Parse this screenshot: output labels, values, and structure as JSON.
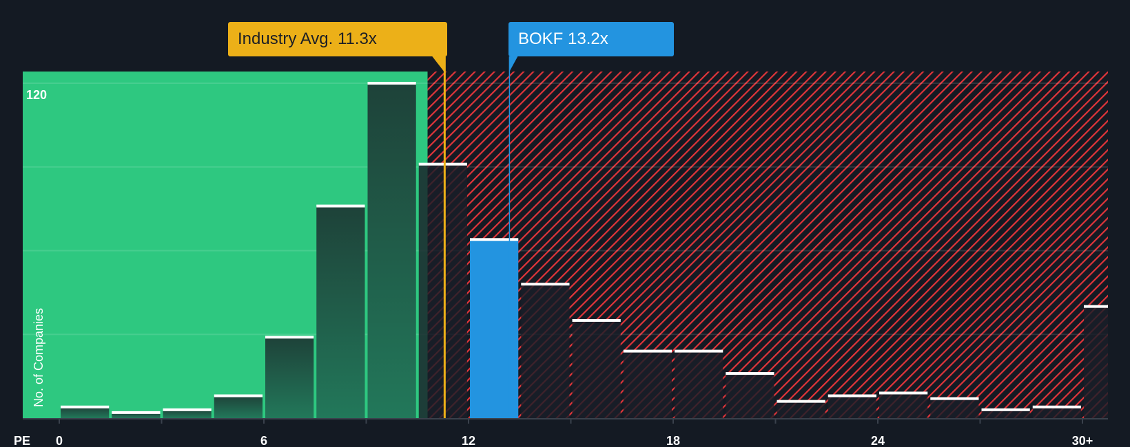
{
  "chart_data": {
    "type": "bar",
    "title": "",
    "xlabel": "PE",
    "ylabel": "No. of Companies",
    "x_ticks": [
      "0",
      "6",
      "12",
      "18",
      "24",
      "30+"
    ],
    "y_tick_label": "120",
    "ylim": [
      0,
      124
    ],
    "xlim": [
      0,
      31.5
    ],
    "bin_width": 1.5,
    "bins_start": [
      0,
      1.5,
      3,
      4.5,
      6,
      7.5,
      9,
      10.5,
      12,
      13.5,
      15,
      16.5,
      18,
      19.5,
      21,
      22.5,
      24,
      25.5,
      27,
      28.5,
      30
    ],
    "values": [
      4,
      2,
      3,
      8,
      29,
      76,
      120,
      91,
      64,
      48,
      35,
      24,
      24,
      16,
      6,
      8,
      9,
      7,
      3,
      4,
      40
    ],
    "highlight_bin_index": 8,
    "industry_avg": {
      "label": "Industry Avg. 11.3x",
      "value": 11.3
    },
    "company": {
      "label": "BOKF 13.2x",
      "value": 13.2
    },
    "fair_region_end": 10.8,
    "colors": {
      "background": "#141a23",
      "green": "#2ec880",
      "red": "#e0353a",
      "blue": "#2394e0",
      "gold": "#ecb018",
      "bar_dark": "#1f4a3c"
    }
  }
}
